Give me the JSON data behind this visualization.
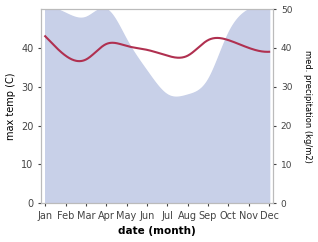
{
  "months": [
    "Jan",
    "Feb",
    "Mar",
    "Apr",
    "May",
    "Jun",
    "Jul",
    "Aug",
    "Sep",
    "Oct",
    "Nov",
    "Dec"
  ],
  "month_indices": [
    0,
    1,
    2,
    3,
    4,
    5,
    6,
    7,
    8,
    9,
    10,
    11
  ],
  "temp_values": [
    43,
    38,
    37,
    41,
    40.5,
    39.5,
    38,
    38,
    42,
    42,
    40,
    39
  ],
  "precip_values": [
    50,
    49,
    48,
    50,
    42,
    34,
    28,
    28,
    32,
    44,
    50,
    52
  ],
  "temp_color": "#b03050",
  "precip_fill_color": "#c8d0e8",
  "temp_ylim": [
    0,
    50
  ],
  "precip_ylim": [
    0,
    50
  ],
  "temp_yticks": [
    0,
    10,
    20,
    30,
    40
  ],
  "precip_yticks": [
    0,
    10,
    20,
    30,
    40,
    50
  ],
  "ylabel_left": "max temp (C)",
  "ylabel_right": "med. precipitation (kg/m2)",
  "xlabel": "date (month)",
  "background_color": "#ffffff",
  "spine_color": "#bbbbbb",
  "temp_linewidth": 1.5
}
